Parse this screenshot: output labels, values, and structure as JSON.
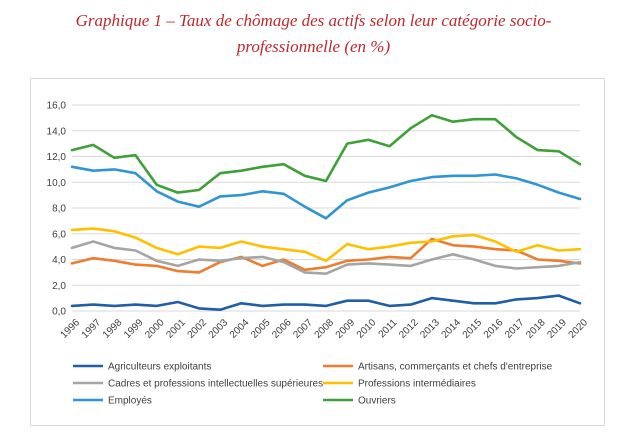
{
  "title": {
    "line1": "Graphique 1 – Taux de chômage des actifs selon leur catégorie socio-",
    "line2": "professionnelle (en %)"
  },
  "colors": {
    "agri": "#1f5fa6",
    "artisans": "#ed7d31",
    "cadres": "#a5a5a5",
    "prof_inter": "#ffc000",
    "employes": "#2f96d3",
    "ouvriers": "#3ea138",
    "grid": "#d9d9d9"
  },
  "chart_data": {
    "type": "line",
    "title": "Taux de chômage des actifs selon leur catégorie socio-professionnelle (en %)",
    "xlabel": "",
    "ylabel": "",
    "ylim": [
      0,
      16
    ],
    "yticks": [
      "0,0",
      "2,0",
      "4,0",
      "6,0",
      "8,0",
      "10,0",
      "12,0",
      "14,0",
      "16,0"
    ],
    "ytick_values": [
      0,
      2,
      4,
      6,
      8,
      10,
      12,
      14,
      16
    ],
    "categories": [
      "1996",
      "1997",
      "1998",
      "1999",
      "2000",
      "2001",
      "2002",
      "2003",
      "2004",
      "2005",
      "2006",
      "2007",
      "2008",
      "2009",
      "2010",
      "2011",
      "2012",
      "2013",
      "2014",
      "2015",
      "2016",
      "2017",
      "2018",
      "2019",
      "2020"
    ],
    "legend_position": "bottom",
    "series": [
      {
        "key": "agri",
        "name": "Agriculteurs exploitants",
        "values": [
          0.4,
          0.5,
          0.4,
          0.5,
          0.4,
          0.7,
          0.2,
          0.1,
          0.6,
          0.4,
          0.5,
          0.5,
          0.4,
          0.8,
          0.8,
          0.4,
          0.5,
          1.0,
          0.8,
          0.6,
          0.6,
          0.9,
          1.0,
          1.2,
          0.6
        ]
      },
      {
        "key": "artisans",
        "name": "Artisans, commerçants et chefs d'entreprise",
        "values": [
          3.7,
          4.1,
          3.9,
          3.6,
          3.5,
          3.1,
          3.0,
          3.8,
          4.2,
          3.5,
          4.0,
          3.2,
          3.4,
          3.9,
          4.0,
          4.2,
          4.1,
          5.6,
          5.1,
          5.0,
          4.8,
          4.7,
          4.0,
          3.9,
          3.7
        ]
      },
      {
        "key": "cadres",
        "name": "Cadres et professions intellectuelles supérieures",
        "values": [
          4.9,
          5.4,
          4.9,
          4.7,
          3.9,
          3.5,
          4.0,
          3.9,
          4.1,
          4.2,
          3.8,
          3.0,
          2.9,
          3.6,
          3.7,
          3.6,
          3.5,
          4.0,
          4.4,
          4.0,
          3.5,
          3.3,
          3.4,
          3.5,
          3.8
        ]
      },
      {
        "key": "prof_inter",
        "name": "Professions intermédiaires",
        "values": [
          6.3,
          6.4,
          6.2,
          5.7,
          4.9,
          4.4,
          5.0,
          4.9,
          5.4,
          5.0,
          4.8,
          4.6,
          3.9,
          5.2,
          4.8,
          5.0,
          5.3,
          5.4,
          5.8,
          5.9,
          5.4,
          4.6,
          5.1,
          4.7,
          4.8
        ]
      },
      {
        "key": "employes",
        "name": "Employés",
        "values": [
          11.2,
          10.9,
          11.0,
          10.7,
          9.3,
          8.5,
          8.1,
          8.9,
          9.0,
          9.3,
          9.1,
          8.1,
          7.2,
          8.6,
          9.2,
          9.6,
          10.1,
          10.4,
          10.5,
          10.5,
          10.6,
          10.3,
          9.8,
          9.2,
          8.7
        ]
      },
      {
        "key": "ouvriers",
        "name": "Ouvriers",
        "values": [
          12.5,
          12.9,
          11.9,
          12.1,
          9.8,
          9.2,
          9.4,
          10.7,
          10.9,
          11.2,
          11.4,
          10.5,
          10.1,
          13.0,
          13.3,
          12.8,
          14.2,
          15.2,
          14.7,
          14.9,
          14.9,
          13.5,
          12.5,
          12.4,
          11.4
        ]
      }
    ]
  }
}
